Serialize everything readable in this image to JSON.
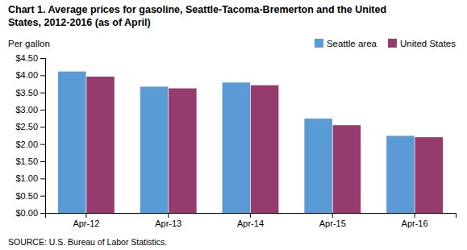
{
  "chart_data": {
    "type": "bar",
    "title": "Chart 1. Average prices for gasoline, Seattle-Tacoma-Bremerton and the United\nStates, 2012-2016  (as of April)",
    "y_label": "Per gallon",
    "source": "SOURCE: U.S. Bureau of Labor Statistics.",
    "categories": [
      "Apr-12",
      "Apr-13",
      "Apr-14",
      "Apr-15",
      "Apr-16"
    ],
    "series": [
      {
        "name": "Seattle area",
        "color": "#5B9BD5",
        "values": [
          4.11,
          3.67,
          3.79,
          2.74,
          2.24
        ]
      },
      {
        "name": "United States",
        "color": "#963B6E",
        "values": [
          3.96,
          3.62,
          3.71,
          2.55,
          2.2
        ]
      }
    ],
    "ylim": [
      0,
      4.5
    ],
    "yticks": [
      {
        "value": 0.0,
        "label": "$0.00"
      },
      {
        "value": 0.5,
        "label": "$0.50"
      },
      {
        "value": 1.0,
        "label": "$1.00"
      },
      {
        "value": 1.5,
        "label": "$1.50"
      },
      {
        "value": 2.0,
        "label": "$2.00"
      },
      {
        "value": 2.5,
        "label": "$2.50"
      },
      {
        "value": 3.0,
        "label": "$3.00"
      },
      {
        "value": 3.5,
        "label": "$3.50"
      },
      {
        "value": 4.0,
        "label": "$4.00"
      },
      {
        "value": 4.5,
        "label": "$4.50"
      }
    ],
    "grid": false,
    "legend": "upper right"
  }
}
